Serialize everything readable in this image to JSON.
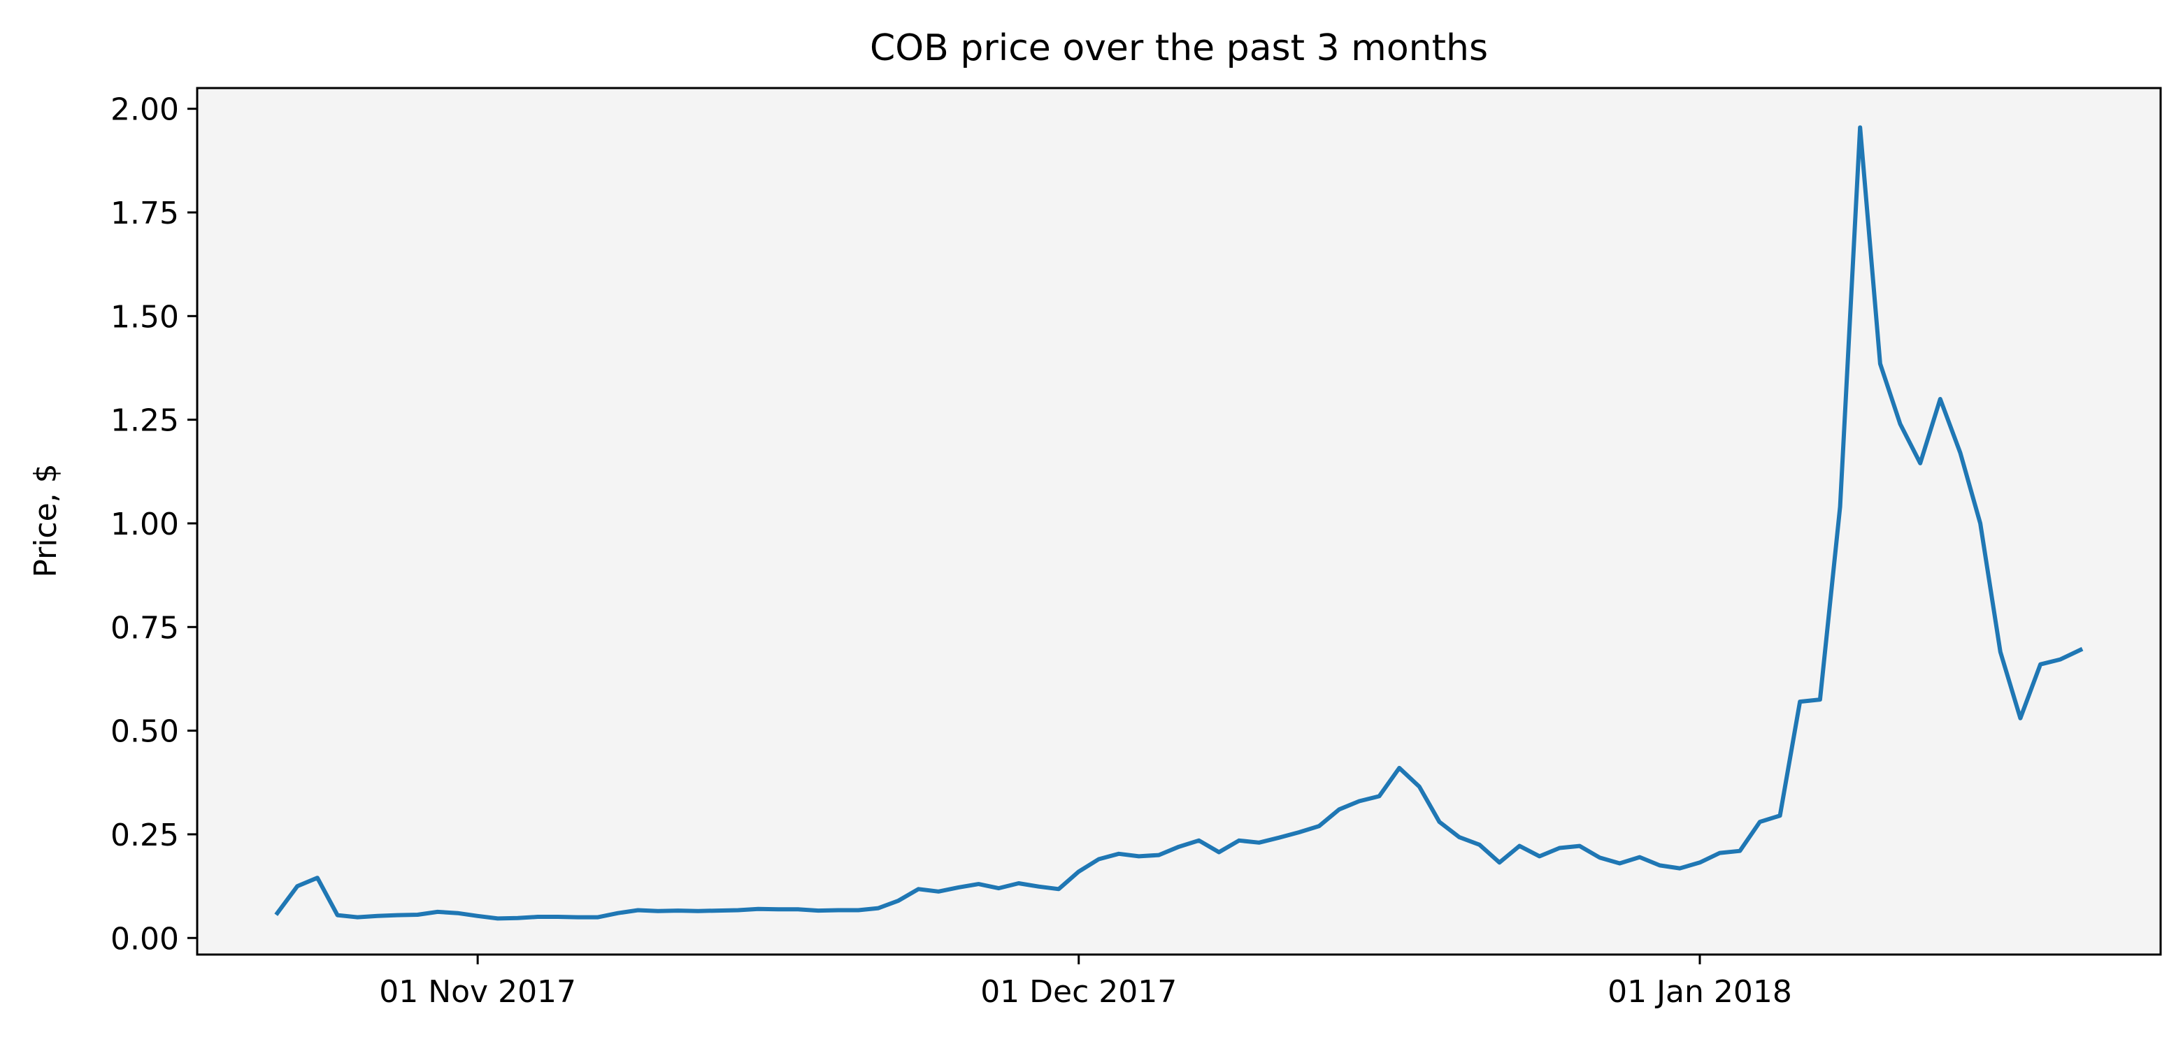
{
  "chart_data": {
    "type": "line",
    "title": "COB price over the past 3 months",
    "xlabel": "",
    "ylabel": "Price, $",
    "x_tick_labels": [
      {
        "date": "2017-11-01",
        "label": "01 Nov 2017"
      },
      {
        "date": "2017-12-01",
        "label": "01 Dec 2017"
      },
      {
        "date": "2018-01-01",
        "label": "01 Jan 2018"
      }
    ],
    "xlim": [
      "2017-10-18",
      "2018-01-24"
    ],
    "y_ticks": [
      0.0,
      0.25,
      0.5,
      0.75,
      1.0,
      1.25,
      1.5,
      1.75,
      2.0
    ],
    "y_tick_labels": [
      "0.00",
      "0.25",
      "0.50",
      "0.75",
      "1.00",
      "1.25",
      "1.50",
      "1.75",
      "2.00"
    ],
    "ylim": [
      -0.04,
      2.05
    ],
    "grid": false,
    "background_color": "#f4f4f4",
    "series": [
      {
        "color": "#1f77b4",
        "points": [
          [
            "2017-10-22",
            0.06
          ],
          [
            "2017-10-23",
            0.125
          ],
          [
            "2017-10-24",
            0.145
          ],
          [
            "2017-10-25",
            0.055
          ],
          [
            "2017-10-26",
            0.05
          ],
          [
            "2017-10-27",
            0.053
          ],
          [
            "2017-10-28",
            0.055
          ],
          [
            "2017-10-29",
            0.056
          ],
          [
            "2017-10-30",
            0.063
          ],
          [
            "2017-10-31",
            0.06
          ],
          [
            "2017-11-01",
            0.053
          ],
          [
            "2017-11-02",
            0.047
          ],
          [
            "2017-11-03",
            0.048
          ],
          [
            "2017-11-04",
            0.051
          ],
          [
            "2017-11-05",
            0.051
          ],
          [
            "2017-11-06",
            0.05
          ],
          [
            "2017-11-07",
            0.05
          ],
          [
            "2017-11-08",
            0.06
          ],
          [
            "2017-11-09",
            0.067
          ],
          [
            "2017-11-10",
            0.065
          ],
          [
            "2017-11-11",
            0.066
          ],
          [
            "2017-11-12",
            0.065
          ],
          [
            "2017-11-13",
            0.066
          ],
          [
            "2017-11-14",
            0.067
          ],
          [
            "2017-11-15",
            0.07
          ],
          [
            "2017-11-16",
            0.069
          ],
          [
            "2017-11-17",
            0.069
          ],
          [
            "2017-11-18",
            0.066
          ],
          [
            "2017-11-19",
            0.067
          ],
          [
            "2017-11-20",
            0.067
          ],
          [
            "2017-11-21",
            0.072
          ],
          [
            "2017-11-22",
            0.09
          ],
          [
            "2017-11-23",
            0.118
          ],
          [
            "2017-11-24",
            0.112
          ],
          [
            "2017-11-25",
            0.122
          ],
          [
            "2017-11-26",
            0.13
          ],
          [
            "2017-11-27",
            0.12
          ],
          [
            "2017-11-28",
            0.132
          ],
          [
            "2017-11-29",
            0.124
          ],
          [
            "2017-11-30",
            0.118
          ],
          [
            "2017-12-01",
            0.16
          ],
          [
            "2017-12-02",
            0.19
          ],
          [
            "2017-12-03",
            0.203
          ],
          [
            "2017-12-04",
            0.197
          ],
          [
            "2017-12-05",
            0.2
          ],
          [
            "2017-12-06",
            0.22
          ],
          [
            "2017-12-07",
            0.235
          ],
          [
            "2017-12-08",
            0.207
          ],
          [
            "2017-12-09",
            0.235
          ],
          [
            "2017-12-10",
            0.23
          ],
          [
            "2017-12-11",
            0.242
          ],
          [
            "2017-12-12",
            0.255
          ],
          [
            "2017-12-13",
            0.27
          ],
          [
            "2017-12-14",
            0.31
          ],
          [
            "2017-12-15",
            0.33
          ],
          [
            "2017-12-16",
            0.342
          ],
          [
            "2017-12-17",
            0.41
          ],
          [
            "2017-12-18",
            0.365
          ],
          [
            "2017-12-19",
            0.28
          ],
          [
            "2017-12-20",
            0.243
          ],
          [
            "2017-12-21",
            0.225
          ],
          [
            "2017-12-22",
            0.182
          ],
          [
            "2017-12-23",
            0.222
          ],
          [
            "2017-12-24",
            0.197
          ],
          [
            "2017-12-25",
            0.217
          ],
          [
            "2017-12-26",
            0.222
          ],
          [
            "2017-12-27",
            0.194
          ],
          [
            "2017-12-28",
            0.18
          ],
          [
            "2017-12-29",
            0.195
          ],
          [
            "2017-12-30",
            0.175
          ],
          [
            "2017-12-31",
            0.168
          ],
          [
            "2018-01-01",
            0.182
          ],
          [
            "2018-01-02",
            0.205
          ],
          [
            "2018-01-03",
            0.21
          ],
          [
            "2018-01-04",
            0.28
          ],
          [
            "2018-01-05",
            0.295
          ],
          [
            "2018-01-06",
            0.57
          ],
          [
            "2018-01-07",
            0.575
          ],
          [
            "2018-01-08",
            1.04
          ],
          [
            "2018-01-09",
            1.955
          ],
          [
            "2018-01-10",
            1.385
          ],
          [
            "2018-01-11",
            1.24
          ],
          [
            "2018-01-12",
            1.145
          ],
          [
            "2018-01-13",
            1.3
          ],
          [
            "2018-01-14",
            1.17
          ],
          [
            "2018-01-15",
            1.0
          ],
          [
            "2018-01-16",
            0.69
          ],
          [
            "2018-01-17",
            0.53
          ],
          [
            "2018-01-18",
            0.66
          ],
          [
            "2018-01-19",
            0.672
          ],
          [
            "2018-01-20",
            0.695
          ]
        ]
      }
    ]
  }
}
